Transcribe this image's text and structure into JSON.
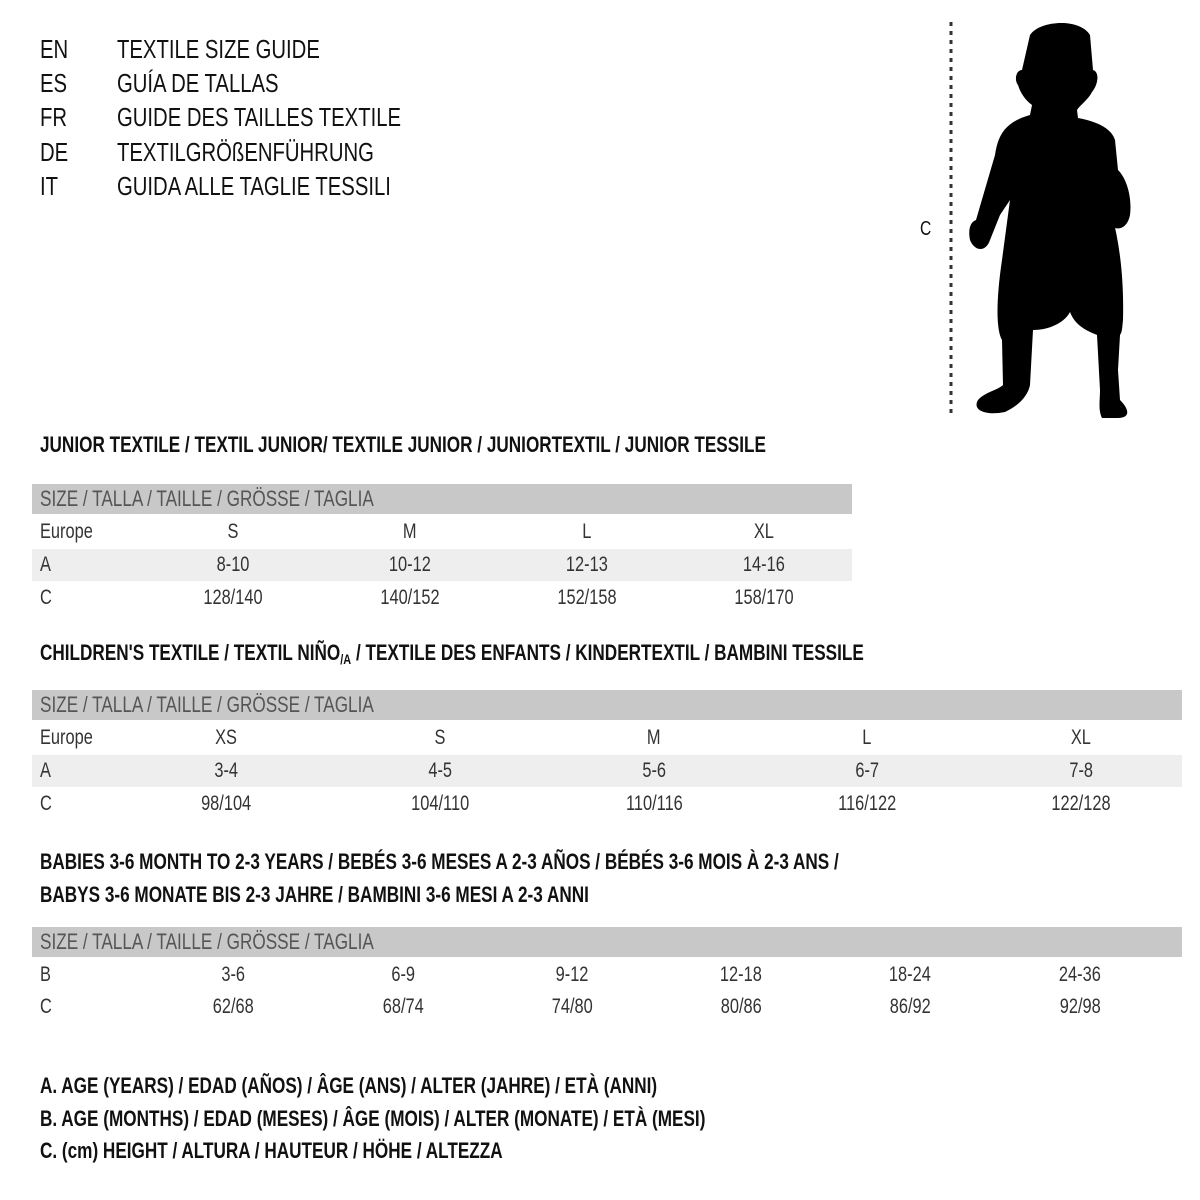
{
  "titles": [
    {
      "code": "EN",
      "text": "TEXTILE SIZE GUIDE"
    },
    {
      "code": "ES",
      "text": "GUÍA DE TALLAS"
    },
    {
      "code": "FR",
      "text": "GUIDE DES TAILLES TEXTILE"
    },
    {
      "code": "DE",
      "text": "TEXTILGRÖßENFÜHRUNG"
    },
    {
      "code": "IT",
      "text": "GUIDA ALLE TAGLIE TESSILI"
    }
  ],
  "figure": {
    "measure_label": "C"
  },
  "junior": {
    "heading": "JUNIOR TEXTILE / TEXTIL JUNIOR/ TEXTILE JUNIOR / JUNIORTEXTIL / JUNIOR TESSILE",
    "size_header": "SIZE / TALLA / TAILLE / GRÖSSE / TAGLIA",
    "rows": [
      {
        "label": "Europe",
        "values": [
          "S",
          "M",
          "L",
          "XL"
        ]
      },
      {
        "label": "A",
        "values": [
          "8-10",
          "10-12",
          "12-13",
          "14-16"
        ]
      },
      {
        "label": "C",
        "values": [
          "128/140",
          "140/152",
          "152/158",
          "158/170"
        ]
      }
    ]
  },
  "children": {
    "heading_main": "CHILDREN'S TEXTILE / TEXTIL NIÑO",
    "heading_sub": "/A",
    "heading_rest": " / TEXTILE DES ENFANTS / KINDERTEXTIL / BAMBINI TESSILE",
    "size_header": "SIZE / TALLA / TAILLE / GRÖSSE / TAGLIA",
    "rows": [
      {
        "label": "Europe",
        "values": [
          "XS",
          "S",
          "M",
          "L",
          "XL"
        ]
      },
      {
        "label": "A",
        "values": [
          "3-4",
          "4-5",
          "5-6",
          "6-7",
          "7-8"
        ]
      },
      {
        "label": "C",
        "values": [
          "98/104",
          "104/110",
          "110/116",
          "116/122",
          "122/128"
        ]
      }
    ]
  },
  "babies": {
    "heading_line1": "BABIES 3-6 MONTH TO 2-3 YEARS / BEBÉS 3-6 MESES A 2-3 AÑOS / BÉBÉS 3-6 MOIS À 2-3 ANS /",
    "heading_line2": "BABYS 3-6 MONATE BIS 2-3 JAHRE / BAMBINI 3-6 MESI A 2-3 ANNI",
    "size_header": "SIZE / TALLA / TAILLE / GRÖSSE / TAGLIA",
    "rows": [
      {
        "label": "B",
        "values": [
          "3-6",
          "6-9",
          "9-12",
          "12-18",
          "18-24",
          "24-36"
        ]
      },
      {
        "label": "C",
        "values": [
          "62/68",
          "68/74",
          "74/80",
          "80/86",
          "86/92",
          "92/98"
        ]
      }
    ]
  },
  "legend": [
    "A. AGE (YEARS) / EDAD (AÑOS) / ÂGE (ANS) / ALTER (JAHRE) / ETÀ (ANNI)",
    "B. AGE (MONTHS) / EDAD (MESES) / ÂGE (MOIS) / ALTER (MONATE) / ETÀ (MESI)",
    "C. (cm) HEIGHT / ALTURA / HAUTEUR / HÖHE / ALTEZZA"
  ],
  "colors": {
    "header_band": "#c8c8c8",
    "alt_row": "#eeeeee",
    "text": "#111111"
  }
}
